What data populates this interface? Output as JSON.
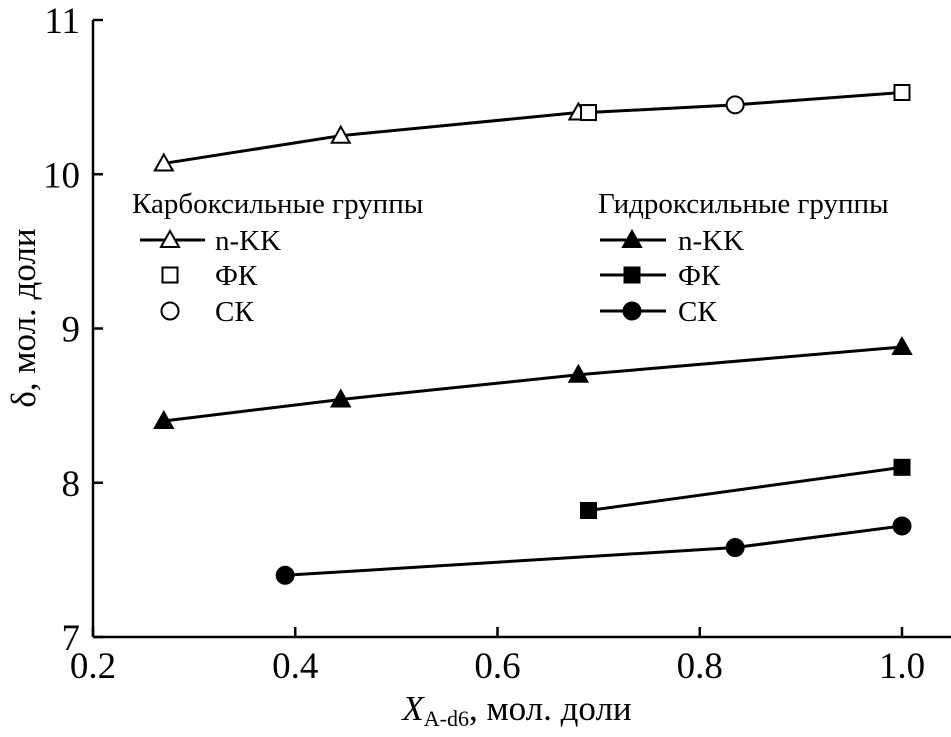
{
  "chart_data": {
    "type": "line",
    "xlabel_main": "X",
    "xlabel_sub": "A-d6",
    "xlabel_rest": ", мол. доли",
    "ylabel": "δ, мол. доли",
    "xlim": [
      0.2,
      1.0
    ],
    "ylim": [
      7,
      11
    ],
    "xticks": [
      "0.2",
      "0.4",
      "0.6",
      "0.8",
      "1.0"
    ],
    "yticks": [
      "7",
      "8",
      "9",
      "10",
      "11"
    ],
    "grid": false,
    "legend": {
      "left_title": "Карбоксильные группы",
      "right_title": "Гидроксильные группы",
      "left_labels": [
        "n-KK",
        "ФК",
        "СК"
      ],
      "right_labels": [
        "n-KK",
        "ФК",
        "СК"
      ]
    },
    "carboxyl_line": {
      "x": [
        0.27,
        0.445,
        0.68,
        0.69,
        0.835,
        1.0
      ],
      "y": [
        10.07,
        10.25,
        10.4,
        10.4,
        10.45,
        10.53
      ]
    },
    "series": [
      {
        "name": "n-KK",
        "group": "Карбоксильные группы",
        "marker": "triangle",
        "filled": false,
        "x": [
          0.27,
          0.445,
          0.68
        ],
        "y": [
          10.07,
          10.25,
          10.4
        ]
      },
      {
        "name": "ФК",
        "group": "Карбоксильные группы",
        "marker": "square",
        "filled": false,
        "x": [
          0.69,
          1.0
        ],
        "y": [
          10.4,
          10.53
        ]
      },
      {
        "name": "СК",
        "group": "Карбоксильные группы",
        "marker": "circle",
        "filled": false,
        "x": [
          0.835
        ],
        "y": [
          10.45
        ]
      },
      {
        "name": "n-KK",
        "group": "Гидроксильные группы",
        "marker": "triangle",
        "filled": true,
        "x": [
          0.27,
          0.445,
          0.68,
          1.0
        ],
        "y": [
          8.4,
          8.54,
          8.7,
          8.88
        ]
      },
      {
        "name": "ФК",
        "group": "Гидроксильные группы",
        "marker": "square",
        "filled": true,
        "x": [
          0.69,
          1.0
        ],
        "y": [
          7.82,
          8.1
        ]
      },
      {
        "name": "СК",
        "group": "Гидроксильные группы",
        "marker": "circle",
        "filled": true,
        "x": [
          0.39,
          0.835,
          1.0
        ],
        "y": [
          7.4,
          7.58,
          7.72
        ]
      }
    ]
  }
}
